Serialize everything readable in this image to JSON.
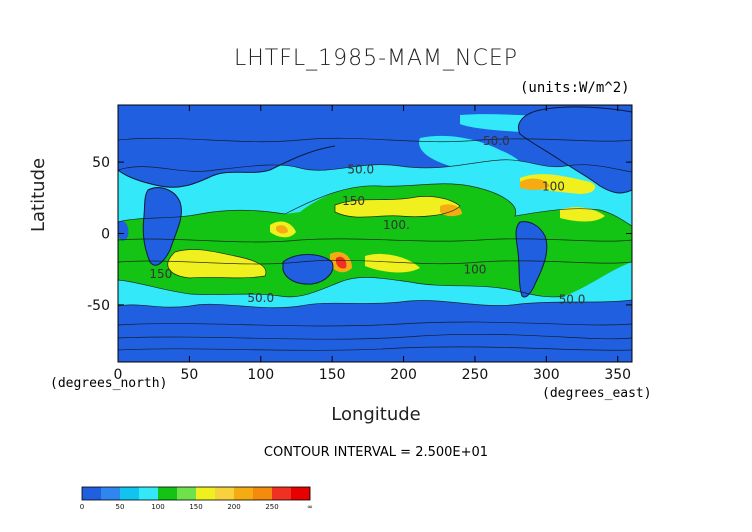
{
  "chart_data": {
    "type": "heatmap",
    "title": "LHTFL_1985-MAM_NCEP",
    "units_label": "(units:W/m^2)",
    "xlabel": "Longitude",
    "ylabel": "Latitude",
    "x_units_label": "(degrees_east)",
    "y_units_label": "(degrees_north)",
    "xlim": [
      0,
      360
    ],
    "ylim": [
      -90,
      90
    ],
    "xticks": [
      0,
      50,
      100,
      150,
      200,
      250,
      300,
      350
    ],
    "yticks": [
      -50,
      0,
      50
    ],
    "contour_interval_text": "CONTOUR INTERVAL = 2.500E+01",
    "contour_labels": [
      {
        "text": "50.0",
        "lon": 265,
        "lat": 62
      },
      {
        "text": "50.0",
        "lon": 170,
        "lat": 42
      },
      {
        "text": "100",
        "lon": 305,
        "lat": 30
      },
      {
        "text": "150",
        "lon": 165,
        "lat": 20
      },
      {
        "text": "100.",
        "lon": 195,
        "lat": 3
      },
      {
        "text": "150",
        "lon": 30,
        "lat": -31
      },
      {
        "text": "100",
        "lon": 250,
        "lat": -28
      },
      {
        "text": "50.0",
        "lon": 100,
        "lat": -48
      },
      {
        "text": "50.0",
        "lon": 318,
        "lat": -49
      }
    ],
    "colorbar": {
      "levels": [
        0,
        25,
        50,
        75,
        100,
        125,
        150,
        175,
        200,
        225,
        250,
        275
      ],
      "colors": [
        "#1f5fe0",
        "#2f86f0",
        "#12c3f0",
        "#33e8f8",
        "#14c414",
        "#6ee24a",
        "#f0f01e",
        "#f7d23c",
        "#f5ac12",
        "#f58a0c",
        "#f03020",
        "#e60000"
      ],
      "tick_labels": [
        "0",
        "50",
        "100",
        "150",
        "200",
        "250",
        "∞"
      ]
    }
  }
}
